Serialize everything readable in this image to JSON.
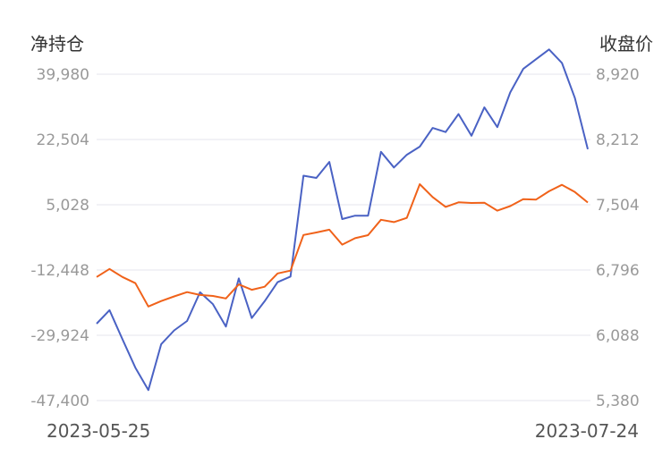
{
  "chart_data": {
    "type": "line",
    "left_axis_title": "净持仓",
    "right_axis_title": "收盘价",
    "left_ticks": [
      "39,980",
      "22,504",
      "5,028",
      "-12,448",
      "-29,924",
      "-47,400"
    ],
    "right_ticks": [
      "8,920",
      "8,212",
      "7,504",
      "6,796",
      "6,088",
      "5,380"
    ],
    "left_ylim": [
      -47400,
      39980
    ],
    "right_ylim": [
      5380,
      8920
    ],
    "x_start_label": "2023-05-25",
    "x_end_label": "2023-07-24",
    "grid": true,
    "colors": {
      "net_position": "#4a62c4",
      "close_price": "#f0621a"
    },
    "series": [
      {
        "key": "net_position",
        "axis": "left",
        "values": [
          -26800,
          -23200,
          -31000,
          -38600,
          -44600,
          -32300,
          -28600,
          -26100,
          -18400,
          -21600,
          -27600,
          -14700,
          -25300,
          -20800,
          -15700,
          -14200,
          12800,
          12200,
          16500,
          1200,
          2100,
          2100,
          19200,
          15000,
          18400,
          20600,
          25600,
          24500,
          29300,
          23500,
          31100,
          25800,
          35100,
          41400,
          44000,
          46600,
          43000,
          33600,
          19900
        ]
      },
      {
        "key": "close_price",
        "axis": "right",
        "values": [
          6720,
          6808,
          6720,
          6653,
          6400,
          6459,
          6510,
          6556,
          6525,
          6515,
          6488,
          6640,
          6582,
          6615,
          6759,
          6789,
          7176,
          7203,
          7233,
          7071,
          7141,
          7174,
          7341,
          7316,
          7361,
          7727,
          7587,
          7481,
          7530,
          7523,
          7526,
          7440,
          7489,
          7564,
          7560,
          7650,
          7720,
          7642,
          7528
        ]
      }
    ]
  }
}
